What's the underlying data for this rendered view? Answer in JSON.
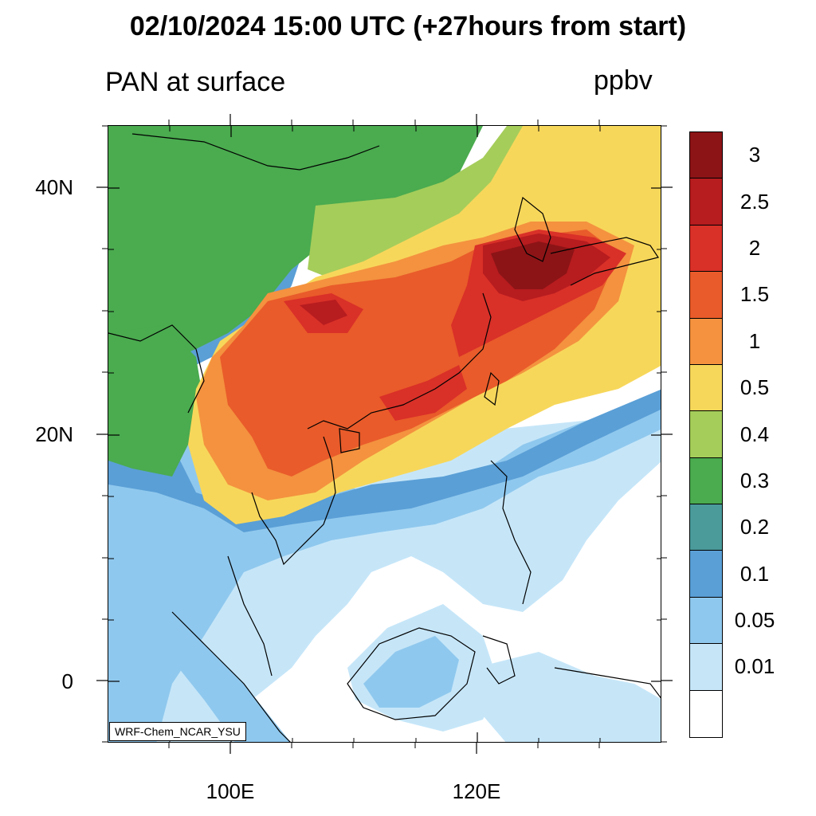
{
  "title": "02/10/2024 15:00 UTC (+27hours from start)",
  "subtitle_left": "PAN at surface",
  "subtitle_right": "ppbv",
  "credit": "WRF-Chem_NCAR_YSU",
  "axes": {
    "lat_labels": [
      "40N",
      "20N",
      "0"
    ],
    "lon_labels": [
      "100E",
      "120E"
    ],
    "lon_range": [
      90,
      135
    ],
    "lat_range": [
      -5,
      45
    ]
  },
  "colorbar": {
    "labels": [
      "3",
      "2.5",
      "2",
      "1.5",
      "1",
      "0.5",
      "0.4",
      "0.3",
      "0.2",
      "0.1",
      "0.05",
      "0.01"
    ],
    "colors": [
      "#8c1416",
      "#b71c1f",
      "#d93028",
      "#e95b2a",
      "#f4923f",
      "#f7d75a",
      "#a5cd5a",
      "#4aab4f",
      "#4b9b9b",
      "#5a9fd6",
      "#8fc8ee",
      "#c6e6f8",
      "#ffffff"
    ]
  }
}
